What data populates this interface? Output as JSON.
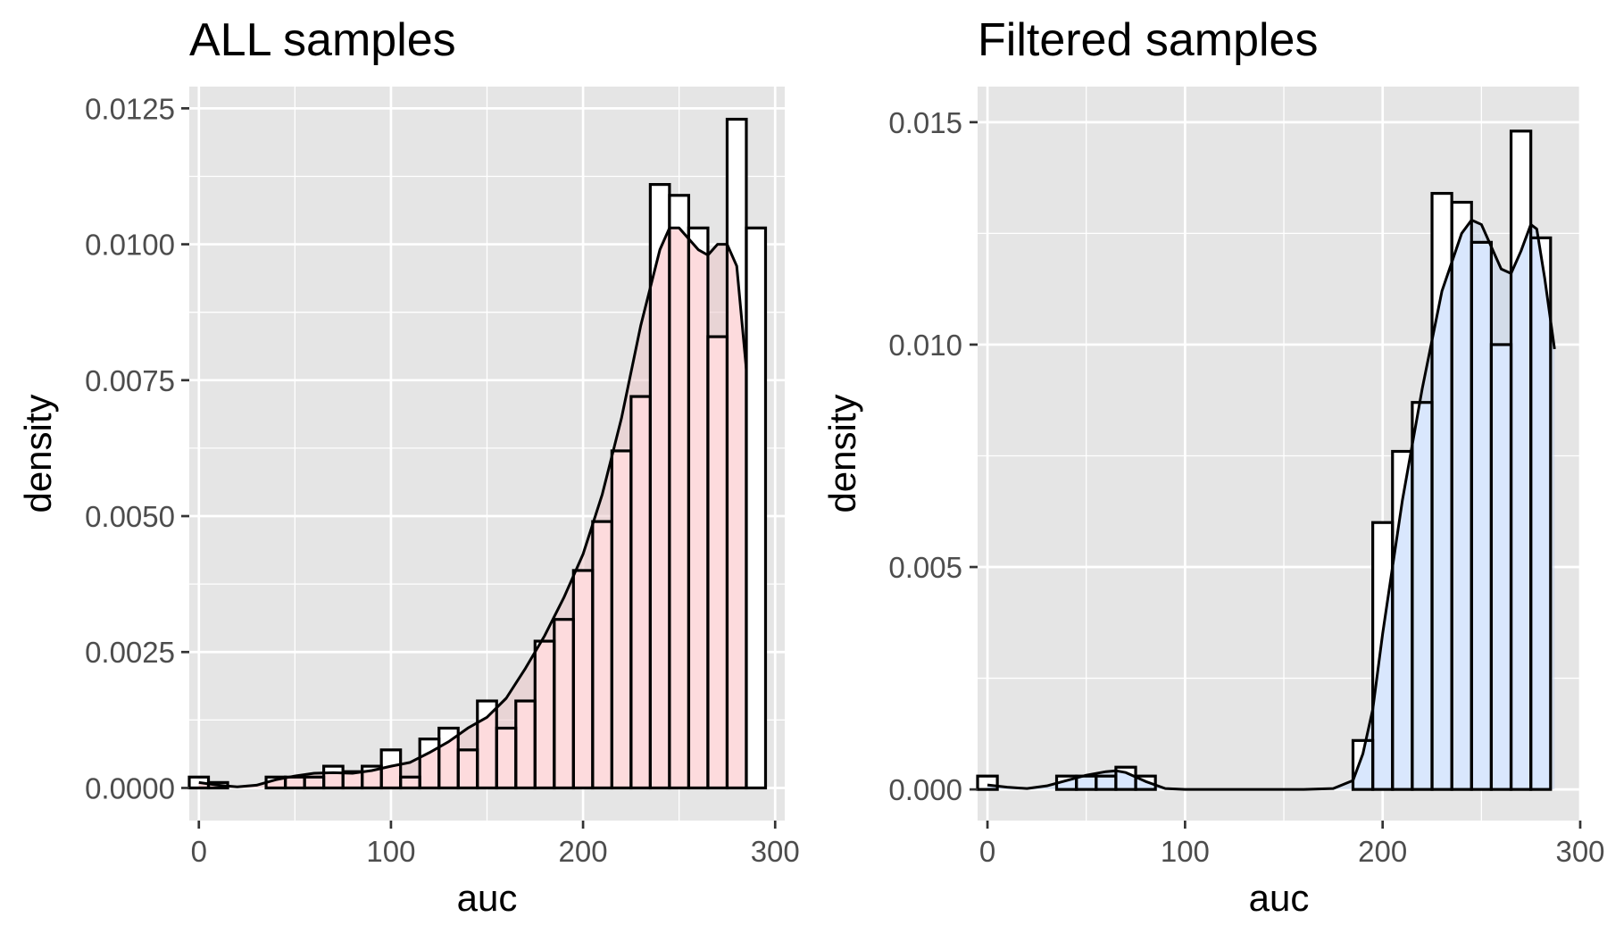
{
  "chart_data": [
    {
      "type": "histogram",
      "title": "ALL samples",
      "xlabel": "auc",
      "ylabel": "density",
      "xlim": [
        -5,
        305
      ],
      "ylim": [
        -0.0006,
        0.0129
      ],
      "x_ticks": [
        {
          "value": 0,
          "label": "0"
        },
        {
          "value": 100,
          "label": "100"
        },
        {
          "value": 200,
          "label": "200"
        },
        {
          "value": 300,
          "label": "300"
        }
      ],
      "y_ticks": [
        {
          "value": 0,
          "label": "0.0000"
        },
        {
          "value": 0.0025,
          "label": "0.0025"
        },
        {
          "value": 0.005,
          "label": "0.0050"
        },
        {
          "value": 0.0075,
          "label": "0.0075"
        },
        {
          "value": 0.01,
          "label": "0.0100"
        },
        {
          "value": 0.0125,
          "label": "0.0125"
        }
      ],
      "bin_width": 10,
      "bin_starts": [
        -5,
        5,
        15,
        25,
        35,
        45,
        55,
        65,
        75,
        85,
        95,
        105,
        115,
        125,
        135,
        145,
        155,
        165,
        175,
        185,
        195,
        205,
        215,
        225,
        235,
        245,
        255,
        265,
        275,
        285
      ],
      "values": [
        0.0002,
        0.0001,
        0.0,
        0.0,
        0.0002,
        0.0002,
        0.0002,
        0.0004,
        0.0003,
        0.0004,
        0.0007,
        0.0002,
        0.0009,
        0.0011,
        0.0007,
        0.0016,
        0.0011,
        0.0016,
        0.0027,
        0.0031,
        0.004,
        0.0049,
        0.0062,
        0.0072,
        0.0111,
        0.0109,
        0.0103,
        0.0083,
        0.0123,
        0.0103
      ],
      "density": {
        "x": [
          0,
          10,
          20,
          30,
          40,
          50,
          60,
          70,
          80,
          90,
          100,
          110,
          120,
          130,
          140,
          150,
          160,
          170,
          180,
          190,
          200,
          210,
          220,
          230,
          240,
          245,
          250,
          260,
          265,
          270,
          275,
          280,
          285
        ],
        "y": [
          0.0001,
          5e-05,
          2e-05,
          5e-05,
          0.00015,
          0.00022,
          0.00027,
          0.00028,
          0.00027,
          0.00032,
          0.0004,
          0.00047,
          0.00065,
          0.00085,
          0.0011,
          0.0013,
          0.00165,
          0.0022,
          0.0028,
          0.0035,
          0.0043,
          0.0054,
          0.0068,
          0.0085,
          0.0099,
          0.0103,
          0.0103,
          0.0099,
          0.0098,
          0.01,
          0.01,
          0.0096,
          0.0077
        ]
      },
      "fill_color": "#ffdde0",
      "density_fill_color": "#ebc6c9",
      "panel_color": "#e5e5e5",
      "grid": true
    },
    {
      "type": "histogram",
      "title": "Filtered samples",
      "xlabel": "auc",
      "ylabel": "density",
      "xlim": [
        -5,
        300
      ],
      "ylim": [
        -0.0007,
        0.0158
      ],
      "x_ticks": [
        {
          "value": 0,
          "label": "0"
        },
        {
          "value": 100,
          "label": "100"
        },
        {
          "value": 200,
          "label": "200"
        },
        {
          "value": 300,
          "label": "300"
        }
      ],
      "y_ticks": [
        {
          "value": 0,
          "label": "0.000"
        },
        {
          "value": 0.005,
          "label": "0.005"
        },
        {
          "value": 0.01,
          "label": "0.010"
        },
        {
          "value": 0.015,
          "label": "0.015"
        }
      ],
      "bin_width": 10,
      "bin_starts": [
        -5,
        5,
        15,
        25,
        35,
        45,
        55,
        65,
        75,
        85,
        95,
        105,
        115,
        125,
        135,
        145,
        155,
        165,
        175,
        185,
        195,
        205,
        215,
        225,
        235,
        245,
        255,
        265,
        275,
        285
      ],
      "values": [
        0.0003,
        0.0,
        0.0,
        0.0,
        0.0003,
        0.0003,
        0.0003,
        0.0005,
        0.0003,
        0.0,
        0.0,
        0.0,
        0.0,
        0.0,
        0.0,
        0.0,
        0.0,
        0.0,
        0.0,
        0.0011,
        0.006,
        0.0076,
        0.0087,
        0.0134,
        0.0132,
        0.0123,
        0.01,
        0.0148,
        0.0124,
        0.0
      ],
      "density": {
        "x": [
          0,
          10,
          20,
          30,
          40,
          50,
          60,
          65,
          70,
          80,
          90,
          100,
          120,
          140,
          160,
          175,
          185,
          190,
          195,
          200,
          210,
          220,
          230,
          240,
          245,
          250,
          260,
          265,
          270,
          275,
          278,
          282,
          287
        ],
        "y": [
          0.0001,
          5e-05,
          2e-05,
          8e-05,
          0.0002,
          0.00032,
          0.0004,
          0.00042,
          0.00038,
          0.00018,
          2e-05,
          0.0,
          0.0,
          0.0,
          0.0,
          2e-05,
          0.0002,
          0.0008,
          0.0018,
          0.0035,
          0.0065,
          0.009,
          0.0112,
          0.0125,
          0.0128,
          0.0127,
          0.0117,
          0.0116,
          0.0121,
          0.0127,
          0.0126,
          0.0115,
          0.0099
        ]
      },
      "fill_color": "#dbe9ff",
      "density_fill_color": "#c4d6ec",
      "panel_color": "#e5e5e5",
      "grid": true
    }
  ]
}
